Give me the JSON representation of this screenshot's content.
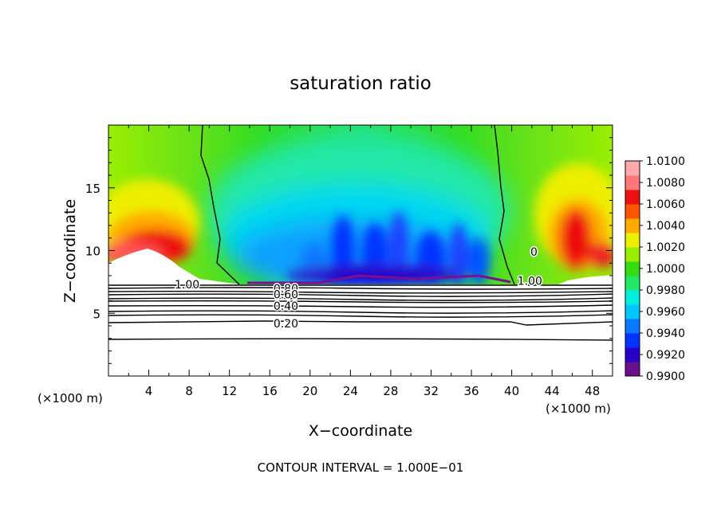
{
  "chart_data": {
    "type": "heatmap",
    "title": "saturation ratio",
    "xlabel": "X−coordinate",
    "ylabel": "Z−coordinate",
    "x_unit_left": "(×1000 m)",
    "x_unit_right": "(×1000 m)",
    "xlim": [
      0,
      50
    ],
    "ylim": [
      0,
      20
    ],
    "x_ticks": [
      4,
      8,
      12,
      16,
      20,
      24,
      28,
      32,
      36,
      40,
      44,
      48
    ],
    "y_ticks": [
      5,
      10,
      15
    ],
    "colorbar": {
      "ticks": [
        "1.0100",
        "1.0080",
        "1.0060",
        "1.0040",
        "1.0020",
        "1.0000",
        "0.9980",
        "0.9960",
        "0.9940",
        "0.9920",
        "0.9900"
      ],
      "min": 0.99,
      "max": 1.01,
      "colors": [
        "#6a0f8e",
        "#2a00c8",
        "#0033ff",
        "#0a78ff",
        "#00c8ff",
        "#00eedd",
        "#22e86a",
        "#33dd11",
        "#99ee00",
        "#eeee00",
        "#ffaa00",
        "#ff5500",
        "#ee1111",
        "#ff7777",
        "#ffaaaa"
      ]
    },
    "contour_labels": [
      {
        "text": "1.00",
        "x": 7.8,
        "y": 7.3
      },
      {
        "text": "0.80",
        "x": 17.6,
        "y": 7.0
      },
      {
        "text": "0.60",
        "x": 17.6,
        "y": 6.5
      },
      {
        "text": "0.40",
        "x": 17.6,
        "y": 5.6
      },
      {
        "text": "0.20",
        "x": 17.6,
        "y": 4.2
      },
      {
        "text": "1.00",
        "x": 41.8,
        "y": 7.6
      },
      {
        "text": "0",
        "x": 42.2,
        "y": 9.9
      }
    ],
    "footer": "CONTOUR INTERVAL = 1.000E−01"
  }
}
